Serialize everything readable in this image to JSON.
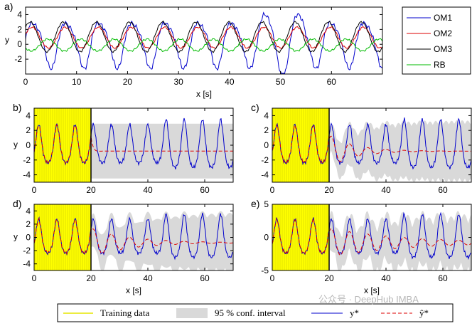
{
  "chart_data": [
    {
      "panel": "a)",
      "type": "line",
      "xlabel": "x [s]",
      "ylabel": "y",
      "xlim": [
        0,
        70
      ],
      "ylim": [
        -4,
        5
      ],
      "xticks": [
        0,
        10,
        20,
        30,
        40,
        50,
        60
      ],
      "yticks": [
        -2,
        0,
        2,
        4
      ],
      "legend": "right",
      "series": [
        {
          "name": "OM1",
          "color": "#0000cc",
          "period": 6.5,
          "amplitude": 3.0,
          "offset": 0.2
        },
        {
          "name": "OM2",
          "color": "#dd0000",
          "period": 6.5,
          "amplitude": 1.4,
          "offset": 0.9
        },
        {
          "name": "OM3",
          "color": "#000000",
          "period": 6.5,
          "amplitude": 2.0,
          "offset": 1.0
        },
        {
          "name": "RB",
          "color": "#00bb00",
          "period": 6.5,
          "amplitude": 0.8,
          "offset": -0.1
        }
      ]
    },
    {
      "panel": "b)",
      "type": "line",
      "xlim": [
        0,
        70
      ],
      "ylim": [
        -5,
        5
      ],
      "xticks": [
        0,
        20,
        40,
        60
      ],
      "yticks": [
        -4,
        -2,
        0,
        2,
        4
      ],
      "ylabel": "y",
      "xlabel": "",
      "training_end": 20,
      "band_style": "flat",
      "pred_mean": -0.8
    },
    {
      "panel": "c)",
      "type": "line",
      "xlim": [
        0,
        70
      ],
      "ylim": [
        -5,
        5
      ],
      "xticks": [
        0,
        20,
        40,
        60
      ],
      "yticks": [
        -4,
        -2,
        0,
        2,
        4
      ],
      "ylabel": "",
      "xlabel": "",
      "training_end": 20,
      "band_style": "decaying",
      "pred_mean": -0.8
    },
    {
      "panel": "d)",
      "type": "line",
      "xlim": [
        0,
        70
      ],
      "ylim": [
        -5,
        5
      ],
      "xticks": [
        0,
        20,
        40,
        60
      ],
      "yticks": [
        -4,
        -2,
        0,
        2,
        4
      ],
      "ylabel": "y",
      "xlabel": "x [s]",
      "training_end": 20,
      "band_style": "tracking",
      "pred_mean": -0.8
    },
    {
      "panel": "e)",
      "type": "line",
      "xlim": [
        0,
        70
      ],
      "ylim": [
        -5,
        5
      ],
      "xticks": [
        0,
        20,
        40,
        60
      ],
      "yticks": [
        -5,
        0,
        5
      ],
      "ylabel": "",
      "xlabel": "x [s]",
      "training_end": 20,
      "band_style": "long",
      "pred_mean": -0.8
    }
  ],
  "legend_bottom": {
    "training": "Training data",
    "band": "95 % conf. interval",
    "true": "y*",
    "pred": "ŷ*"
  },
  "watermark": "公众号 · DeepHub IMBA",
  "colors": {
    "training": "#ffff00",
    "band": "#d9d9d9",
    "true": "#0000cc",
    "pred": "#dd0000"
  }
}
